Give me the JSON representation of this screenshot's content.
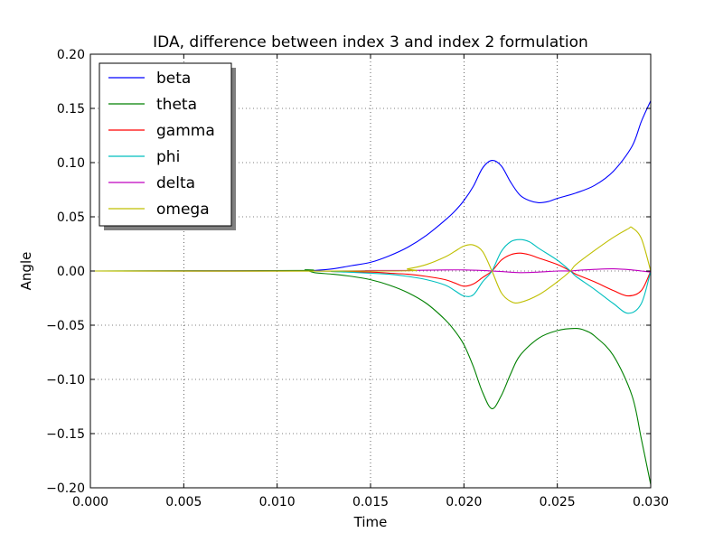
{
  "chart_data": {
    "type": "line",
    "title": "IDA, difference between index 3 and index 2 formulation",
    "xlabel": "Time",
    "ylabel": "Angle",
    "xlim": [
      0.0,
      0.03
    ],
    "ylim": [
      -0.2,
      0.2
    ],
    "xticks": [
      0.0,
      0.005,
      0.01,
      0.015,
      0.02,
      0.025,
      0.03
    ],
    "xtick_labels": [
      "0.000",
      "0.005",
      "0.010",
      "0.015",
      "0.020",
      "0.025",
      "0.030"
    ],
    "yticks": [
      0.2,
      0.15,
      0.1,
      0.05,
      0.0,
      -0.05,
      -0.1,
      -0.15,
      -0.2
    ],
    "ytick_labels": [
      "0.20",
      "0.15",
      "0.10",
      "0.05",
      "0.00",
      "−0.05",
      "−0.10",
      "−0.15",
      "−0.20"
    ],
    "grid": true,
    "legend_position": "top-left",
    "series": [
      {
        "name": "beta",
        "color": "#0000ff",
        "points": [
          [
            0.0,
            0
          ],
          [
            0.011,
            0
          ],
          [
            0.012,
            0.0005
          ],
          [
            0.013,
            0.002
          ],
          [
            0.014,
            0.005
          ],
          [
            0.015,
            0.008
          ],
          [
            0.016,
            0.014
          ],
          [
            0.017,
            0.022
          ],
          [
            0.018,
            0.033
          ],
          [
            0.019,
            0.047
          ],
          [
            0.0195,
            0.055
          ],
          [
            0.02,
            0.065
          ],
          [
            0.0205,
            0.078
          ],
          [
            0.021,
            0.095
          ],
          [
            0.0215,
            0.102
          ],
          [
            0.022,
            0.097
          ],
          [
            0.0225,
            0.082
          ],
          [
            0.023,
            0.07
          ],
          [
            0.0235,
            0.065
          ],
          [
            0.024,
            0.063
          ],
          [
            0.0245,
            0.064
          ],
          [
            0.025,
            0.067
          ],
          [
            0.026,
            0.072
          ],
          [
            0.027,
            0.079
          ],
          [
            0.028,
            0.092
          ],
          [
            0.029,
            0.115
          ],
          [
            0.0295,
            0.138
          ],
          [
            0.03,
            0.157
          ]
        ]
      },
      {
        "name": "theta",
        "color": "#008000",
        "points": [
          [
            0.0,
            0
          ],
          [
            0.011,
            0.0005
          ],
          [
            0.0115,
            0.001
          ],
          [
            0.012,
            -0.0015
          ],
          [
            0.013,
            -0.003
          ],
          [
            0.014,
            -0.005
          ],
          [
            0.015,
            -0.008
          ],
          [
            0.016,
            -0.013
          ],
          [
            0.017,
            -0.02
          ],
          [
            0.018,
            -0.03
          ],
          [
            0.019,
            -0.045
          ],
          [
            0.0195,
            -0.055
          ],
          [
            0.02,
            -0.068
          ],
          [
            0.0205,
            -0.088
          ],
          [
            0.021,
            -0.112
          ],
          [
            0.0215,
            -0.127
          ],
          [
            0.022,
            -0.115
          ],
          [
            0.0225,
            -0.095
          ],
          [
            0.023,
            -0.078
          ],
          [
            0.024,
            -0.062
          ],
          [
            0.025,
            -0.055
          ],
          [
            0.026,
            -0.053
          ],
          [
            0.0265,
            -0.055
          ],
          [
            0.027,
            -0.06
          ],
          [
            0.028,
            -0.078
          ],
          [
            0.029,
            -0.115
          ],
          [
            0.0295,
            -0.155
          ],
          [
            0.03,
            -0.197
          ]
        ]
      },
      {
        "name": "gamma",
        "color": "#ff0000",
        "points": [
          [
            0.0,
            0
          ],
          [
            0.012,
            0
          ],
          [
            0.013,
            -0.0005
          ],
          [
            0.015,
            -0.001
          ],
          [
            0.016,
            -0.002
          ],
          [
            0.017,
            -0.003
          ],
          [
            0.018,
            -0.005
          ],
          [
            0.019,
            -0.008
          ],
          [
            0.0195,
            -0.011
          ],
          [
            0.02,
            -0.014
          ],
          [
            0.0205,
            -0.012
          ],
          [
            0.021,
            -0.006
          ],
          [
            0.0215,
            0.0
          ],
          [
            0.022,
            0.01
          ],
          [
            0.0225,
            0.015
          ],
          [
            0.023,
            0.0165
          ],
          [
            0.0235,
            0.015
          ],
          [
            0.024,
            0.012
          ],
          [
            0.025,
            0.006
          ],
          [
            0.0257,
            0.0
          ],
          [
            0.026,
            -0.003
          ],
          [
            0.027,
            -0.01
          ],
          [
            0.028,
            -0.018
          ],
          [
            0.0288,
            -0.023
          ],
          [
            0.0295,
            -0.018
          ],
          [
            0.03,
            0.0
          ]
        ]
      },
      {
        "name": "phi",
        "color": "#00bfbf",
        "points": [
          [
            0.0,
            0
          ],
          [
            0.012,
            0
          ],
          [
            0.013,
            -0.0005
          ],
          [
            0.015,
            -0.002
          ],
          [
            0.016,
            -0.003
          ],
          [
            0.017,
            -0.005
          ],
          [
            0.018,
            -0.008
          ],
          [
            0.019,
            -0.013
          ],
          [
            0.0195,
            -0.018
          ],
          [
            0.02,
            -0.023
          ],
          [
            0.0205,
            -0.022
          ],
          [
            0.021,
            -0.01
          ],
          [
            0.0215,
            0.0
          ],
          [
            0.022,
            0.018
          ],
          [
            0.0225,
            0.027
          ],
          [
            0.023,
            0.029
          ],
          [
            0.0235,
            0.027
          ],
          [
            0.024,
            0.021
          ],
          [
            0.025,
            0.01
          ],
          [
            0.0257,
            0.0
          ],
          [
            0.026,
            -0.005
          ],
          [
            0.027,
            -0.017
          ],
          [
            0.028,
            -0.03
          ],
          [
            0.0288,
            -0.039
          ],
          [
            0.0295,
            -0.03
          ],
          [
            0.03,
            0.0
          ]
        ]
      },
      {
        "name": "delta",
        "color": "#bf00bf",
        "points": [
          [
            0.0,
            0
          ],
          [
            0.013,
            0
          ],
          [
            0.015,
            0.0005
          ],
          [
            0.017,
            0.0005
          ],
          [
            0.019,
            0.001
          ],
          [
            0.02,
            0.001
          ],
          [
            0.021,
            0.0005
          ],
          [
            0.0215,
            0.0
          ],
          [
            0.022,
            -0.0005
          ],
          [
            0.023,
            -0.0015
          ],
          [
            0.024,
            -0.001
          ],
          [
            0.025,
            0.0
          ],
          [
            0.0257,
            0.0
          ],
          [
            0.026,
            0.0005
          ],
          [
            0.027,
            0.0015
          ],
          [
            0.028,
            0.002
          ],
          [
            0.029,
            0.001
          ],
          [
            0.0295,
            0.0
          ],
          [
            0.03,
            -0.001
          ]
        ]
      },
      {
        "name": "omega",
        "color": "#bfbf00",
        "points": [
          [
            0.0,
            0
          ],
          [
            0.016,
            0
          ],
          [
            0.017,
            0.002
          ],
          [
            0.018,
            0.006
          ],
          [
            0.019,
            0.013
          ],
          [
            0.0195,
            0.018
          ],
          [
            0.02,
            0.023
          ],
          [
            0.0205,
            0.024
          ],
          [
            0.021,
            0.018
          ],
          [
            0.0215,
            0.0
          ],
          [
            0.022,
            -0.02
          ],
          [
            0.0225,
            -0.028
          ],
          [
            0.023,
            -0.029
          ],
          [
            0.024,
            -0.022
          ],
          [
            0.025,
            -0.01
          ],
          [
            0.0257,
            0.0
          ],
          [
            0.026,
            0.006
          ],
          [
            0.027,
            0.019
          ],
          [
            0.028,
            0.031
          ],
          [
            0.0288,
            0.039
          ],
          [
            0.029,
            0.04
          ],
          [
            0.0295,
            0.03
          ],
          [
            0.03,
            0.0
          ]
        ]
      }
    ]
  }
}
